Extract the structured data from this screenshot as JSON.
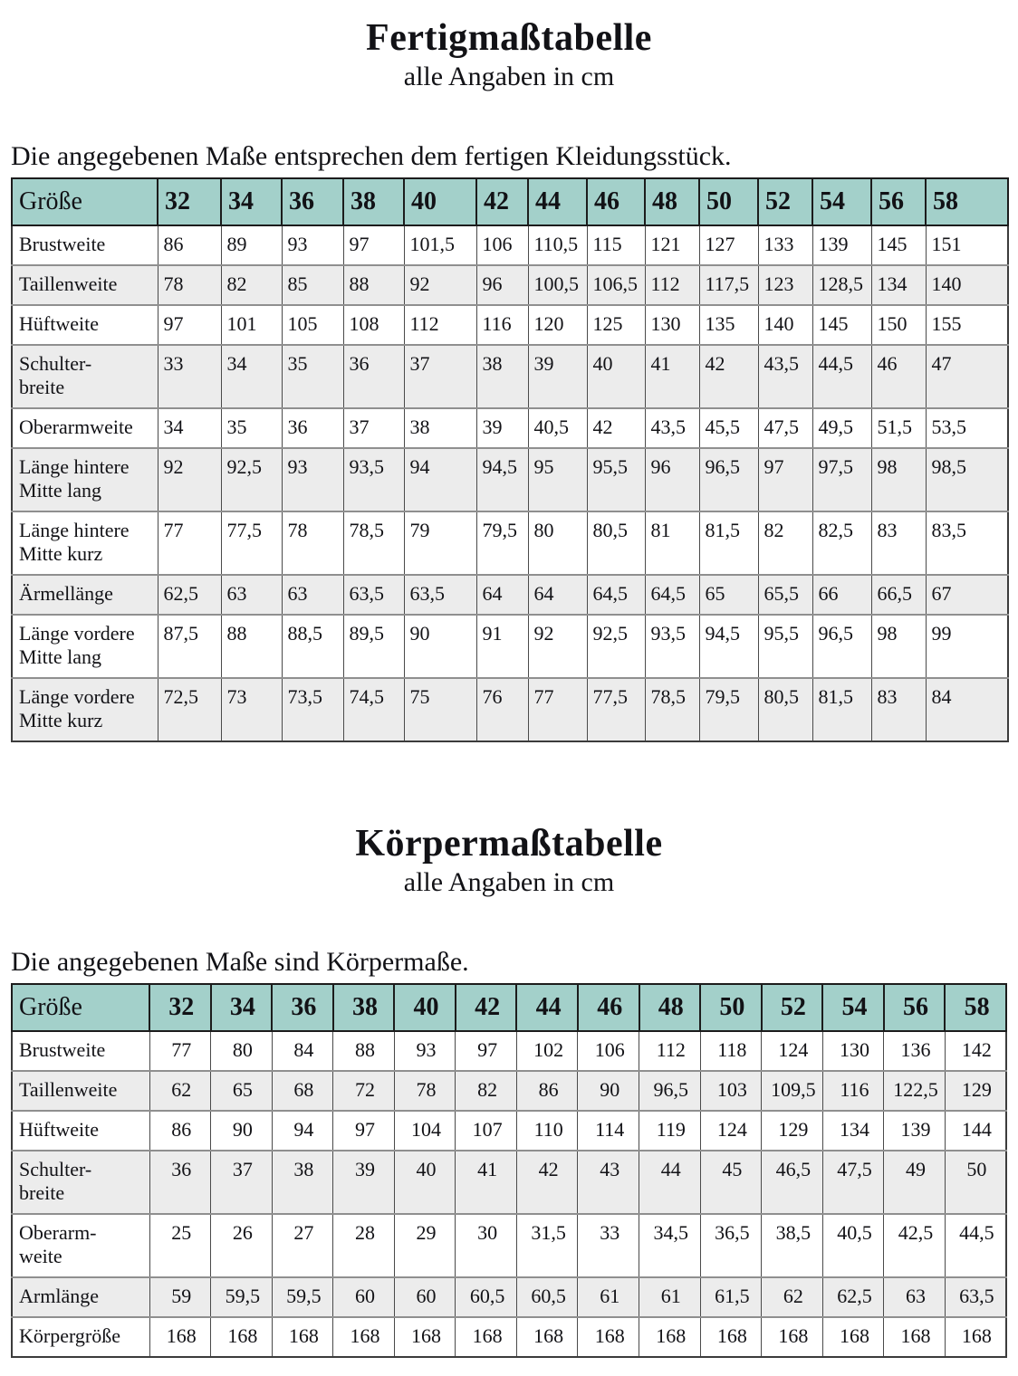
{
  "accent_colors": {
    "table_header_bg": "#a3d0ca",
    "row_stripe": "#ececec",
    "text": "#121216"
  },
  "tables": [
    {
      "title": "Fertigmaßtabelle",
      "subtitle": "alle Angaben in cm",
      "intro": "Die angegebenen Maße entsprechen dem fertigen Kleidungsstück.",
      "header_label": "Größe",
      "sizes": [
        "32",
        "34",
        "36",
        "38",
        "40",
        "42",
        "44",
        "46",
        "48",
        "50",
        "52",
        "54",
        "56",
        "58"
      ],
      "rows": [
        {
          "label": "Brustweite",
          "values": [
            "86",
            "89",
            "93",
            "97",
            "101,5",
            "106",
            "110,5",
            "115",
            "121",
            "127",
            "133",
            "139",
            "145",
            "151"
          ]
        },
        {
          "label": "Taillenweite",
          "values": [
            "78",
            "82",
            "85",
            "88",
            "92",
            "96",
            "100,5",
            "106,5",
            "112",
            "117,5",
            "123",
            "128,5",
            "134",
            "140"
          ]
        },
        {
          "label": "Hüftweite",
          "values": [
            "97",
            "101",
            "105",
            "108",
            "112",
            "116",
            "120",
            "125",
            "130",
            "135",
            "140",
            "145",
            "150",
            "155"
          ]
        },
        {
          "label": "Schulter-\nbreite",
          "values": [
            "33",
            "34",
            "35",
            "36",
            "37",
            "38",
            "39",
            "40",
            "41",
            "42",
            "43,5",
            "44,5",
            "46",
            "47"
          ]
        },
        {
          "label": "Oberarmweite",
          "values": [
            "34",
            "35",
            "36",
            "37",
            "38",
            "39",
            "40,5",
            "42",
            "43,5",
            "45,5",
            "47,5",
            "49,5",
            "51,5",
            "53,5"
          ]
        },
        {
          "label": "Länge hintere\nMitte lang",
          "values": [
            "92",
            "92,5",
            "93",
            "93,5",
            "94",
            "94,5",
            "95",
            "95,5",
            "96",
            "96,5",
            "97",
            "97,5",
            "98",
            "98,5"
          ]
        },
        {
          "label": "Länge hintere\nMitte kurz",
          "values": [
            "77",
            "77,5",
            "78",
            "78,5",
            "79",
            "79,5",
            "80",
            "80,5",
            "81",
            "81,5",
            "82",
            "82,5",
            "83",
            "83,5"
          ]
        },
        {
          "label": "Ärmellänge",
          "values": [
            "62,5",
            "63",
            "63",
            "63,5",
            "63,5",
            "64",
            "64",
            "64,5",
            "64,5",
            "65",
            "65,5",
            "66",
            "66,5",
            "67"
          ]
        },
        {
          "label": "Länge vordere\nMitte lang",
          "values": [
            "87,5",
            "88",
            "88,5",
            "89,5",
            "90",
            "91",
            "92",
            "92,5",
            "93,5",
            "94,5",
            "95,5",
            "96,5",
            "98",
            "99"
          ]
        },
        {
          "label": "Länge vordere\nMitte kurz",
          "values": [
            "72,5",
            "73",
            "73,5",
            "74,5",
            "75",
            "76",
            "77",
            "77,5",
            "78,5",
            "79,5",
            "80,5",
            "81,5",
            "83",
            "84"
          ]
        }
      ]
    },
    {
      "title": "Körpermaßtabelle",
      "subtitle": "alle Angaben in cm",
      "intro": "Die angegebenen Maße sind Körpermaße.",
      "header_label": "Größe",
      "sizes": [
        "32",
        "34",
        "36",
        "38",
        "40",
        "42",
        "44",
        "46",
        "48",
        "50",
        "52",
        "54",
        "56",
        "58"
      ],
      "rows": [
        {
          "label": "Brustweite",
          "values": [
            "77",
            "80",
            "84",
            "88",
            "93",
            "97",
            "102",
            "106",
            "112",
            "118",
            "124",
            "130",
            "136",
            "142"
          ]
        },
        {
          "label": "Taillenweite",
          "values": [
            "62",
            "65",
            "68",
            "72",
            "78",
            "82",
            "86",
            "90",
            "96,5",
            "103",
            "109,5",
            "116",
            "122,5",
            "129"
          ]
        },
        {
          "label": "Hüftweite",
          "values": [
            "86",
            "90",
            "94",
            "97",
            "104",
            "107",
            "110",
            "114",
            "119",
            "124",
            "129",
            "134",
            "139",
            "144"
          ]
        },
        {
          "label": "Schulter-\nbreite",
          "values": [
            "36",
            "37",
            "38",
            "39",
            "40",
            "41",
            "42",
            "43",
            "44",
            "45",
            "46,5",
            "47,5",
            "49",
            "50"
          ]
        },
        {
          "label": "Oberarm-\nweite",
          "values": [
            "25",
            "26",
            "27",
            "28",
            "29",
            "30",
            "31,5",
            "33",
            "34,5",
            "36,5",
            "38,5",
            "40,5",
            "42,5",
            "44,5"
          ]
        },
        {
          "label": "Armlänge",
          "values": [
            "59",
            "59,5",
            "59,5",
            "60",
            "60",
            "60,5",
            "60,5",
            "61",
            "61",
            "61,5",
            "62",
            "62,5",
            "63",
            "63,5"
          ]
        },
        {
          "label": "Körpergröße",
          "values": [
            "168",
            "168",
            "168",
            "168",
            "168",
            "168",
            "168",
            "168",
            "168",
            "168",
            "168",
            "168",
            "168",
            "168"
          ]
        }
      ]
    }
  ]
}
